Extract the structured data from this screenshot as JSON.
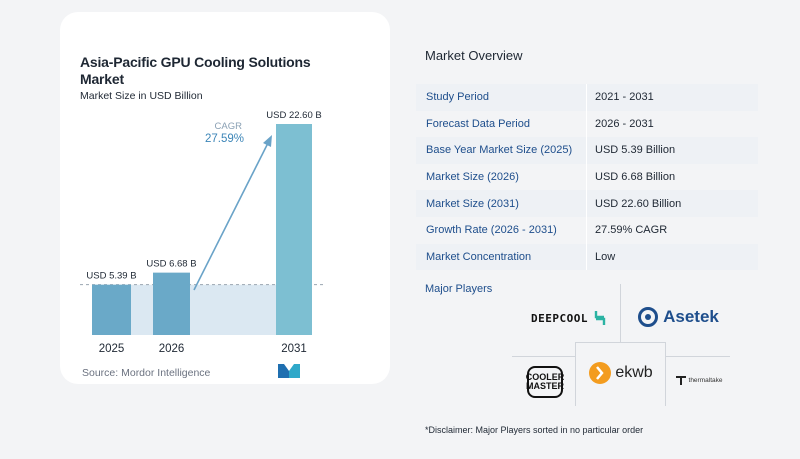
{
  "chart": {
    "title": "Asia-Pacific GPU Cooling Solutions Market",
    "subtitle": "Market Size in USD Billion",
    "source": "Source: Mordor Intelligence",
    "cagr_label": "CAGR",
    "cagr_value": "27.59%"
  },
  "chart_data": {
    "type": "bar",
    "title": "Asia-Pacific GPU Cooling Solutions Market",
    "subtitle": "Market Size in USD Billion",
    "xlabel": "",
    "ylabel": "",
    "categories": [
      "2025",
      "2026",
      "2031"
    ],
    "values": [
      5.39,
      6.68,
      22.6
    ],
    "data_labels": [
      "USD 5.39 B",
      "USD 6.68 B",
      "USD 22.60 B"
    ],
    "ylim": [
      0,
      24
    ],
    "grid": false,
    "annotations": [
      "CAGR",
      "27.59%"
    ],
    "colors": {
      "bar_small": "#6aa9c8",
      "bar_large": "#7dbfd2",
      "arrow": "#6aa3c8",
      "band": "#dbe8f2"
    }
  },
  "overview": {
    "title": "Market Overview",
    "rows": [
      {
        "label": "Study Period",
        "value": "2021 - 2031"
      },
      {
        "label": "Forecast Data Period",
        "value": "2026 - 2031"
      },
      {
        "label": "Base Year Market Size (2025)",
        "value": "USD 5.39 Billion"
      },
      {
        "label": "Market Size (2026)",
        "value": "USD 6.68 Billion"
      },
      {
        "label": "Market Size (2031)",
        "value": "USD 22.60 Billion"
      },
      {
        "label": "Growth Rate (2026 - 2031)",
        "value": "27.59% CAGR"
      },
      {
        "label": "Market Concentration",
        "value": "Low"
      }
    ]
  },
  "players": {
    "title": "Major Players",
    "names": [
      "DEEPCOOL",
      "Asetek",
      "COOLER MASTER",
      "ekwb",
      "thermaltake"
    ],
    "cooler_master_lines": [
      "COOLER",
      "MASTER"
    ]
  },
  "disclaimer": "*Disclaimer: Major Players sorted in no particular order"
}
